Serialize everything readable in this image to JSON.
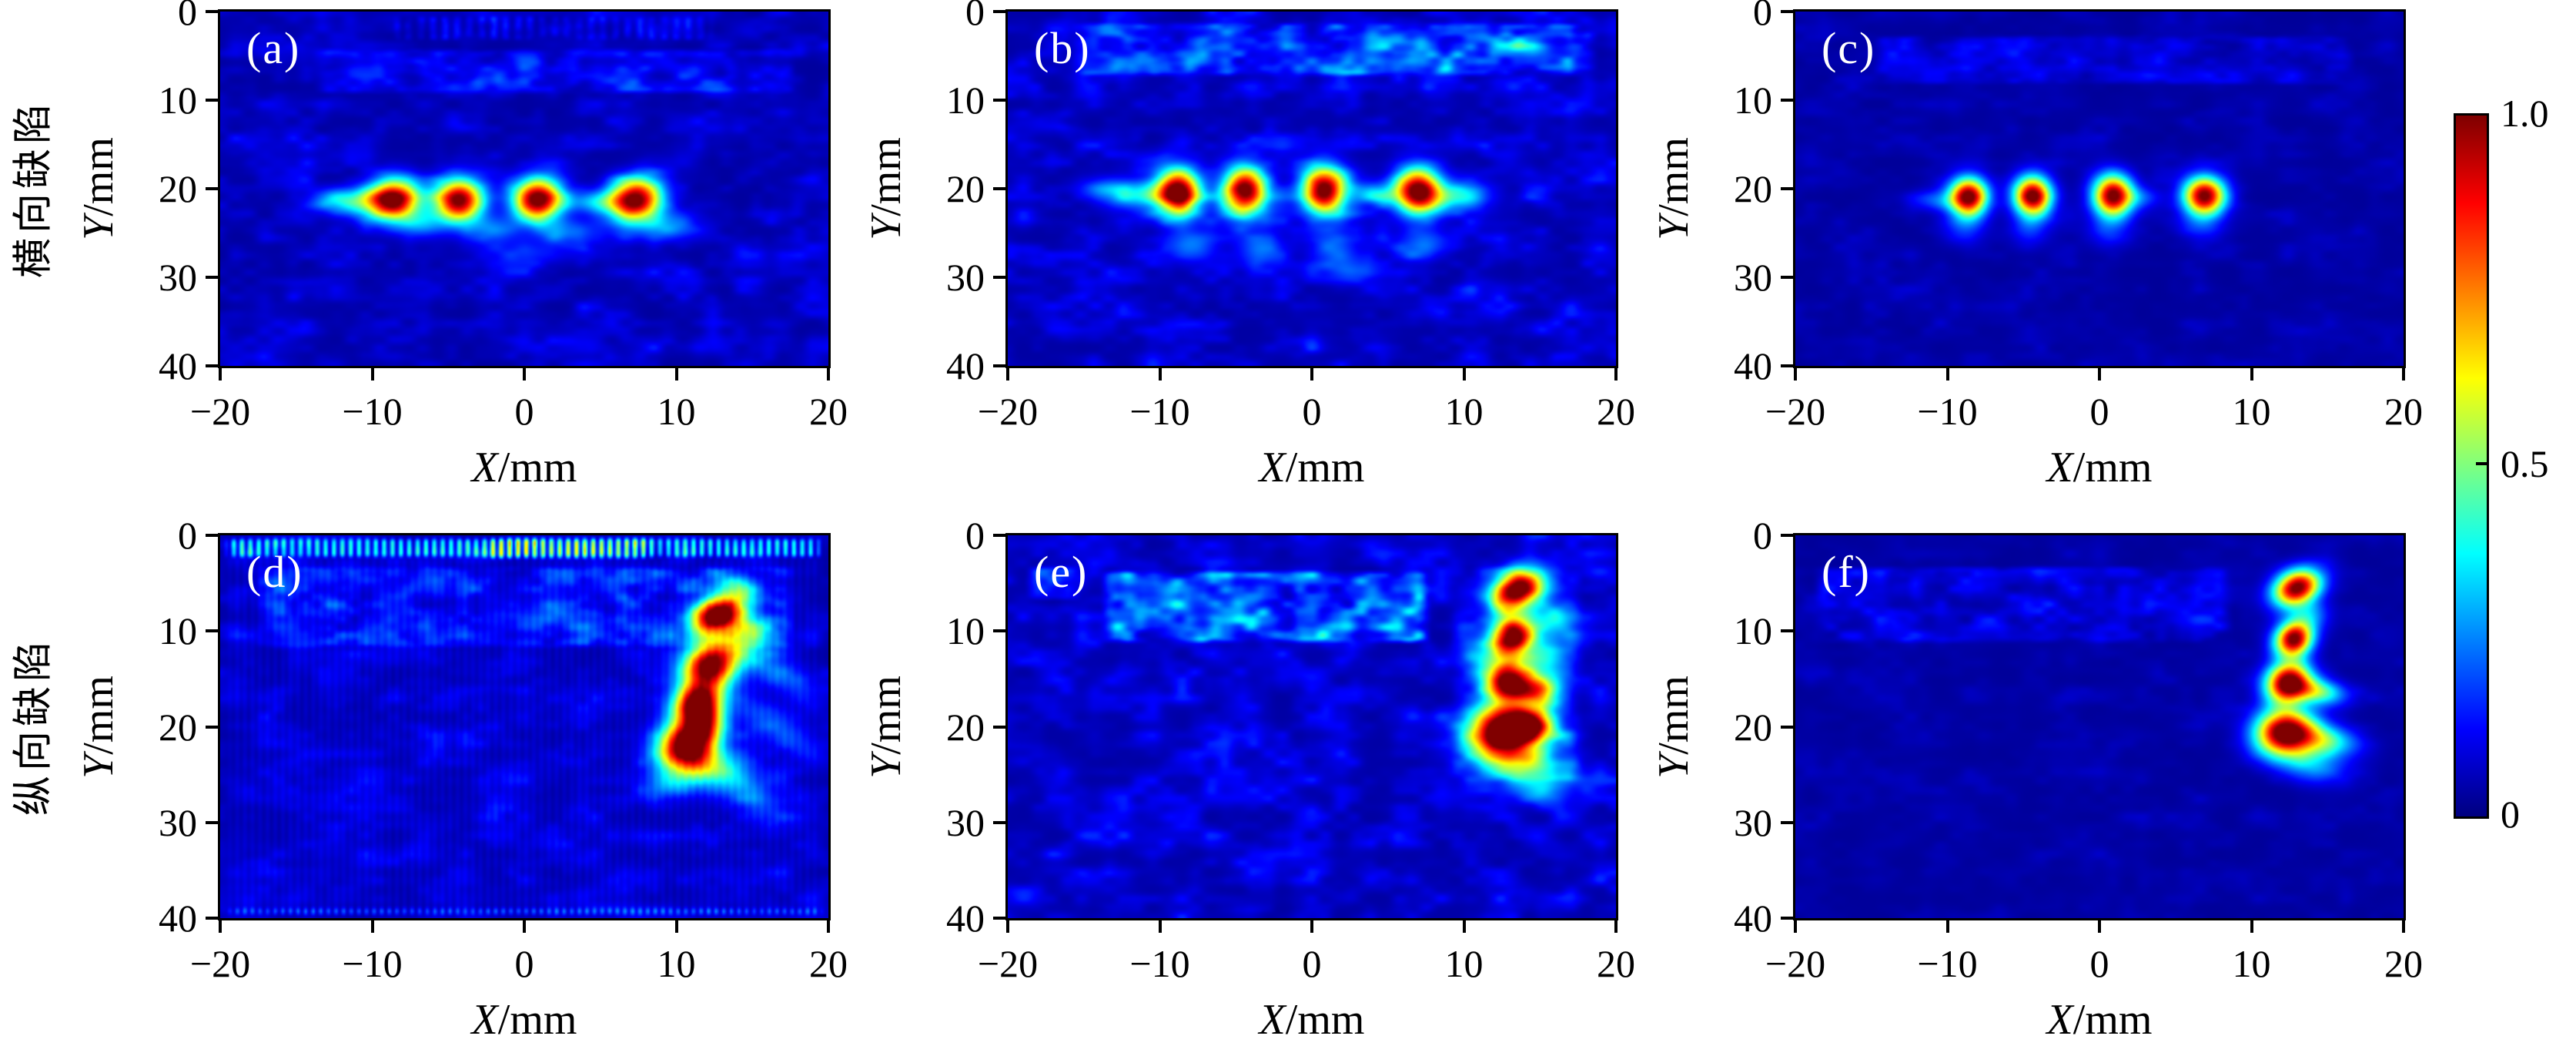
{
  "figure": {
    "background": "#ffffff",
    "row_labels": [
      "横向缺陷",
      "纵向缺陷"
    ],
    "x_axis_label": {
      "variable": "X",
      "unit": "/mm"
    },
    "y_axis_label": {
      "variable": "Y",
      "unit": "/mm"
    },
    "accent_colors": {
      "background_navy": "#000080",
      "core_red": "#800000",
      "frame": "#000000"
    }
  },
  "colorbar": {
    "colormap": "jet",
    "min": 0,
    "max": 1,
    "ticks": [
      {
        "value": 1.0,
        "label": "1.0"
      },
      {
        "value": 0.5,
        "label": "0.5"
      },
      {
        "value": 0.0,
        "label": "0"
      }
    ]
  },
  "hotspot_format": [
    "x_mm",
    "y_mm",
    "amplitude",
    "sigma_x_mm",
    "sigma_y_mm",
    "rotation_deg"
  ],
  "chart_data": [
    {
      "type": "heatmap",
      "panel_label": "(a)",
      "row_label": "横向缺陷",
      "x_label": "X/mm",
      "y_label": "Y/mm",
      "x_range": [
        -20,
        20
      ],
      "y_range": [
        0,
        40
      ],
      "y_axis_inverted": true,
      "x_ticks": [
        "−20",
        "−10",
        "0",
        "10",
        "20"
      ],
      "y_ticks": [
        "0",
        "10",
        "20",
        "30",
        "40"
      ],
      "x_tick_values": [
        -20,
        -10,
        0,
        10,
        20
      ],
      "y_tick_values": [
        0,
        10,
        20,
        30,
        40
      ],
      "colormap": "jet",
      "value_range": [
        0,
        1
      ],
      "seed": 11,
      "background_level": 0.03,
      "speckle_amp": 0.11,
      "hotspots": [
        [
          -8.6,
          21.3,
          1.0,
          1.15,
          1.6,
          0
        ],
        [
          -4.3,
          21.3,
          1.0,
          1.1,
          1.65,
          0
        ],
        [
          0.9,
          21.2,
          1.0,
          1.1,
          1.65,
          0
        ],
        [
          7.3,
          21.3,
          1.0,
          1.2,
          1.65,
          -10
        ]
      ],
      "halos": [
        [
          -11.6,
          21.4,
          0.32,
          1.7,
          1.0,
          0
        ],
        [
          -6.7,
          24.0,
          0.2,
          1.1,
          1.1,
          0
        ],
        [
          -2.1,
          24.6,
          0.2,
          1.3,
          1.1,
          0
        ],
        [
          3.1,
          24.9,
          0.17,
          1.5,
          1.0,
          0
        ],
        [
          9.3,
          24.2,
          0.2,
          1.5,
          1.1,
          0
        ],
        [
          0.3,
          27.3,
          0.12,
          2.0,
          1.0,
          0
        ],
        [
          4.6,
          21.5,
          0.24,
          1.2,
          0.9,
          0
        ]
      ],
      "noise_regions": [
        {
          "x": [
            -9,
            13
          ],
          "y": [
            0.2,
            3.5
          ],
          "amp": 0.13,
          "stripe_period": 0.8
        },
        {
          "x": [
            -14,
            18
          ],
          "y": [
            4,
            9.5
          ],
          "amp": 0.14
        }
      ]
    },
    {
      "type": "heatmap",
      "panel_label": "(b)",
      "row_label": "横向缺陷",
      "x_label": "X/mm",
      "y_label": "Y/mm",
      "x_range": [
        -20,
        20
      ],
      "y_range": [
        0,
        40
      ],
      "y_axis_inverted": true,
      "x_ticks": [
        "−20",
        "−10",
        "0",
        "10",
        "20"
      ],
      "y_ticks": [
        "0",
        "10",
        "20",
        "30",
        "40"
      ],
      "x_tick_values": [
        -20,
        -10,
        0,
        10,
        20
      ],
      "y_tick_values": [
        0,
        10,
        20,
        30,
        40
      ],
      "colormap": "jet",
      "value_range": [
        0,
        1
      ],
      "seed": 22,
      "background_level": 0.035,
      "speckle_amp": 0.13,
      "hotspots": [
        [
          -8.8,
          20.3,
          1.0,
          1.0,
          1.8,
          0
        ],
        [
          -4.4,
          20.2,
          1.0,
          1.0,
          1.85,
          0
        ],
        [
          0.8,
          20.2,
          1.0,
          1.0,
          1.85,
          0
        ],
        [
          7.0,
          20.3,
          1.0,
          1.05,
          1.8,
          0
        ]
      ],
      "halos": [
        [
          -11.4,
          20.6,
          0.3,
          1.5,
          1.1,
          0
        ],
        [
          9.6,
          20.9,
          0.3,
          1.4,
          1.1,
          0
        ],
        [
          -7.9,
          26.4,
          0.2,
          1.2,
          1.4,
          0
        ],
        [
          -3.3,
          27.1,
          0.18,
          1.1,
          1.3,
          0
        ],
        [
          1.4,
          26.7,
          0.18,
          1.1,
          1.4,
          0
        ],
        [
          2.9,
          29.2,
          0.14,
          1.3,
          1.1,
          0
        ],
        [
          7.3,
          26.1,
          0.17,
          1.2,
          1.2,
          0
        ],
        [
          4.3,
          20.6,
          0.24,
          1.1,
          0.9,
          0
        ],
        [
          -13.9,
          20.0,
          0.15,
          1.1,
          0.9,
          0
        ]
      ],
      "noise_regions": [
        {
          "x": [
            -16,
            18
          ],
          "y": [
            1,
            7.5
          ],
          "amp": 0.2
        },
        {
          "x": [
            8,
            19
          ],
          "y": [
            2,
            7
          ],
          "amp": 0.12
        }
      ]
    },
    {
      "type": "heatmap",
      "panel_label": "(c)",
      "row_label": "横向缺陷",
      "x_label": "X/mm",
      "y_label": "Y/mm",
      "x_range": [
        -20,
        20
      ],
      "y_range": [
        0,
        40
      ],
      "y_axis_inverted": true,
      "x_ticks": [
        "−20",
        "−10",
        "0",
        "10",
        "20"
      ],
      "y_ticks": [
        "0",
        "10",
        "20",
        "30",
        "40"
      ],
      "x_tick_values": [
        -20,
        -10,
        0,
        10,
        20
      ],
      "y_tick_values": [
        0,
        10,
        20,
        30,
        40
      ],
      "colormap": "jet",
      "value_range": [
        0,
        1
      ],
      "seed": 33,
      "background_level": 0.025,
      "speckle_amp": 0.05,
      "hotspots": [
        [
          -8.6,
          20.9,
          1.0,
          0.85,
          1.5,
          0
        ],
        [
          -4.4,
          20.8,
          1.0,
          0.85,
          1.55,
          0
        ],
        [
          0.9,
          20.8,
          1.0,
          0.9,
          1.6,
          0
        ],
        [
          6.9,
          20.8,
          1.0,
          0.95,
          1.5,
          0
        ]
      ],
      "halos": [
        [
          -10.7,
          21.3,
          0.17,
          1.2,
          0.85,
          0
        ],
        [
          -8.9,
          24.4,
          0.14,
          1.0,
          1.3,
          0
        ],
        [
          -4.6,
          24.7,
          0.13,
          0.9,
          1.3,
          0
        ],
        [
          0.6,
          24.8,
          0.13,
          0.9,
          1.4,
          0
        ],
        [
          6.7,
          24.1,
          0.12,
          1.0,
          1.2,
          0
        ],
        [
          2.9,
          21.0,
          0.14,
          0.9,
          0.8,
          0
        ]
      ],
      "noise_regions": [
        {
          "x": [
            -15,
            17
          ],
          "y": [
            2.5,
            8.5
          ],
          "amp": 0.095
        }
      ]
    },
    {
      "type": "heatmap",
      "panel_label": "(d)",
      "row_label": "纵向缺陷",
      "x_label": "X/mm",
      "y_label": "Y/mm",
      "x_range": [
        -20,
        20
      ],
      "y_range": [
        0,
        40
      ],
      "y_axis_inverted": true,
      "x_ticks": [
        "−20",
        "−10",
        "0",
        "10",
        "20"
      ],
      "y_ticks": [
        "0",
        "10",
        "20",
        "30",
        "40"
      ],
      "x_tick_values": [
        -20,
        -10,
        0,
        10,
        20
      ],
      "y_tick_values": [
        0,
        10,
        20,
        30,
        40
      ],
      "colormap": "jet",
      "value_range": [
        0,
        1
      ],
      "seed": 44,
      "background_level": 0.035,
      "speckle_amp": 0.1,
      "hotspots": [
        [
          12.7,
          8.2,
          1.0,
          1.0,
          1.45,
          -35
        ],
        [
          12.3,
          13.4,
          1.0,
          1.25,
          1.75,
          -20
        ],
        [
          11.4,
          17.4,
          0.97,
          1.05,
          1.5,
          -15
        ],
        [
          10.8,
          21.6,
          1.0,
          1.25,
          1.7,
          -10
        ]
      ],
      "halos": [
        [
          14.7,
          9.9,
          0.38,
          1.5,
          1.05,
          -40
        ],
        [
          11.9,
          19.4,
          0.5,
          0.85,
          1.3,
          0
        ],
        [
          11.6,
          24.1,
          0.42,
          1.9,
          1.4,
          -30
        ],
        [
          15.8,
          13.5,
          0.16,
          3.4,
          0.9,
          -52
        ],
        [
          16.2,
          19.6,
          0.14,
          3.1,
          1.0,
          -52
        ],
        [
          14.6,
          26.6,
          0.16,
          2.7,
          1.1,
          -55
        ],
        [
          13.9,
          5.5,
          0.25,
          1.2,
          0.9,
          -35
        ],
        [
          9.5,
          25.9,
          0.2,
          1.1,
          1.0,
          0
        ]
      ],
      "noise_regions": [
        {
          "x": [
            -20,
            20
          ],
          "y": [
            0,
            2.6
          ],
          "amp": 0.42,
          "stripe_period": 0.55,
          "flat": true
        },
        {
          "x": [
            -3,
            9
          ],
          "y": [
            0,
            2.8
          ],
          "amp": 0.3,
          "stripe_period": 0.55,
          "flat": true
        },
        {
          "x": [
            -18,
            18
          ],
          "y": [
            3,
            12
          ],
          "amp": 0.14
        },
        {
          "x": [
            -20,
            20
          ],
          "y": [
            38.6,
            40
          ],
          "amp": 0.22,
          "stripe_period": 0.5,
          "flat": true
        },
        {
          "x": [
            -20,
            20
          ],
          "y": [
            2,
            40
          ],
          "amp": 0.035,
          "stripe_period": 0.5,
          "flat": true
        }
      ]
    },
    {
      "type": "heatmap",
      "panel_label": "(e)",
      "row_label": "纵向缺陷",
      "x_label": "X/mm",
      "y_label": "Y/mm",
      "x_range": [
        -20,
        20
      ],
      "y_range": [
        0,
        40
      ],
      "y_axis_inverted": true,
      "x_ticks": [
        "−20",
        "−10",
        "0",
        "10",
        "20"
      ],
      "y_ticks": [
        "0",
        "10",
        "20",
        "30",
        "40"
      ],
      "x_tick_values": [
        -20,
        -10,
        0,
        10,
        20
      ],
      "y_tick_values": [
        0,
        10,
        20,
        30,
        40
      ],
      "colormap": "jet",
      "value_range": [
        0,
        1
      ],
      "seed": 55,
      "background_level": 0.035,
      "speckle_amp": 0.13,
      "hotspots": [
        [
          13.6,
          5.6,
          1.0,
          1.1,
          1.5,
          -25
        ],
        [
          13.2,
          10.6,
          1.0,
          0.95,
          1.4,
          -10
        ],
        [
          12.9,
          15.4,
          1.0,
          1.05,
          1.55,
          -10
        ],
        [
          12.6,
          20.4,
          1.0,
          1.45,
          1.65,
          -15
        ]
      ],
      "halos": [
        [
          14.9,
          16.2,
          0.6,
          1.0,
          1.1,
          0
        ],
        [
          14.3,
          19.9,
          0.75,
          1.1,
          1.25,
          0
        ],
        [
          13.4,
          23.3,
          0.4,
          2.2,
          1.5,
          -20
        ],
        [
          15.6,
          12.7,
          0.3,
          1.0,
          1.5,
          0
        ],
        [
          15.9,
          8.7,
          0.28,
          1.1,
          1.1,
          0
        ],
        [
          14.9,
          25.9,
          0.2,
          1.8,
          1.1,
          -40
        ],
        [
          11.2,
          13.0,
          0.2,
          0.9,
          1.3,
          0
        ]
      ],
      "noise_regions": [
        {
          "x": [
            -14,
            8
          ],
          "y": [
            3.5,
            11.5
          ],
          "amp": 0.33
        },
        {
          "x": [
            -19,
            -15
          ],
          "y": [
            3,
            7
          ],
          "amp": 0.18
        },
        {
          "x": [
            9,
            18
          ],
          "y": [
            3,
            26
          ],
          "amp": 0.1
        }
      ]
    },
    {
      "type": "heatmap",
      "panel_label": "(f)",
      "row_label": "纵向缺陷",
      "x_label": "X/mm",
      "y_label": "Y/mm",
      "x_range": [
        -20,
        20
      ],
      "y_range": [
        0,
        40
      ],
      "y_axis_inverted": true,
      "x_ticks": [
        "−20",
        "−10",
        "0",
        "10",
        "20"
      ],
      "y_ticks": [
        "0",
        "10",
        "20",
        "30",
        "40"
      ],
      "x_tick_values": [
        -20,
        -10,
        0,
        10,
        20
      ],
      "y_tick_values": [
        0,
        10,
        20,
        30,
        40
      ],
      "colormap": "jet",
      "value_range": [
        0,
        1
      ],
      "seed": 66,
      "background_level": 0.025,
      "speckle_amp": 0.045,
      "hotspots": [
        [
          13.0,
          5.5,
          1.0,
          1.0,
          1.4,
          -25
        ],
        [
          12.8,
          10.8,
          1.0,
          0.85,
          1.3,
          -10
        ],
        [
          12.4,
          15.4,
          1.0,
          1.0,
          1.5,
          -10
        ],
        [
          12.2,
          20.5,
          1.0,
          1.35,
          1.6,
          -10
        ]
      ],
      "halos": [
        [
          14.3,
          16.3,
          0.45,
          1.3,
          0.9,
          -20
        ],
        [
          14.7,
          21.4,
          0.42,
          1.6,
          1.1,
          -20
        ],
        [
          13.6,
          23.7,
          0.26,
          1.9,
          1.2,
          -30
        ],
        [
          13.9,
          8.3,
          0.2,
          0.9,
          1.0,
          0
        ]
      ],
      "noise_regions": [
        {
          "x": [
            -19,
            9
          ],
          "y": [
            3,
            11.5
          ],
          "amp": 0.12
        }
      ]
    }
  ]
}
